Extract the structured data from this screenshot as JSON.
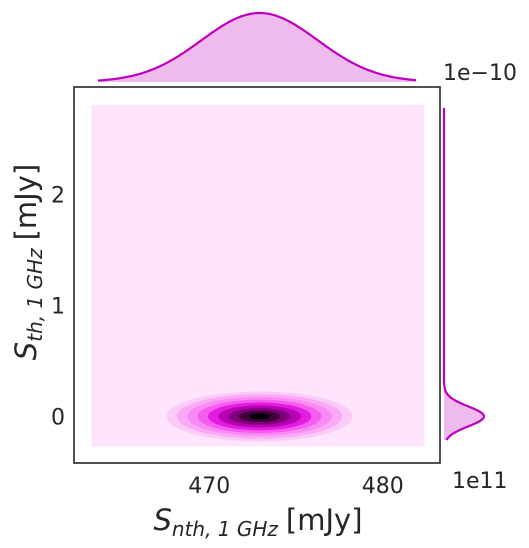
{
  "chart_data": {
    "type": "joint-kde",
    "xlabel": {
      "main": "S",
      "sub": "nth, 1 GHz",
      "unit": "[mJy]"
    },
    "ylabel": {
      "main": "S",
      "sub": "th, 1 GHz",
      "unit": "[mJy]"
    },
    "x_ticks": [
      470,
      480
    ],
    "y_ticks": [
      0,
      1,
      2
    ],
    "xlim": [
      462.2,
      483.3
    ],
    "ylim": [
      -0.42,
      2.97
    ],
    "kde_extent": {
      "x": [
        463.2,
        482.4
      ],
      "y": [
        -0.27,
        2.81
      ]
    },
    "kde_peak": {
      "x": 472.9,
      "y": 0.0
    },
    "marginal_top_scale_label": "1e−10",
    "marginal_right_scale_label": "1e11",
    "colors": {
      "fill": "#ffe4fd",
      "levels": [
        "#fbcbf8",
        "#f9a9f6",
        "#f78af3",
        "#f55cf0",
        "#e41be0",
        "#b800b5",
        "#7d007a",
        "#3d003b",
        "#000000"
      ],
      "marginal_line": "#bf00bf",
      "marginal_fill": "#eebbec"
    }
  }
}
